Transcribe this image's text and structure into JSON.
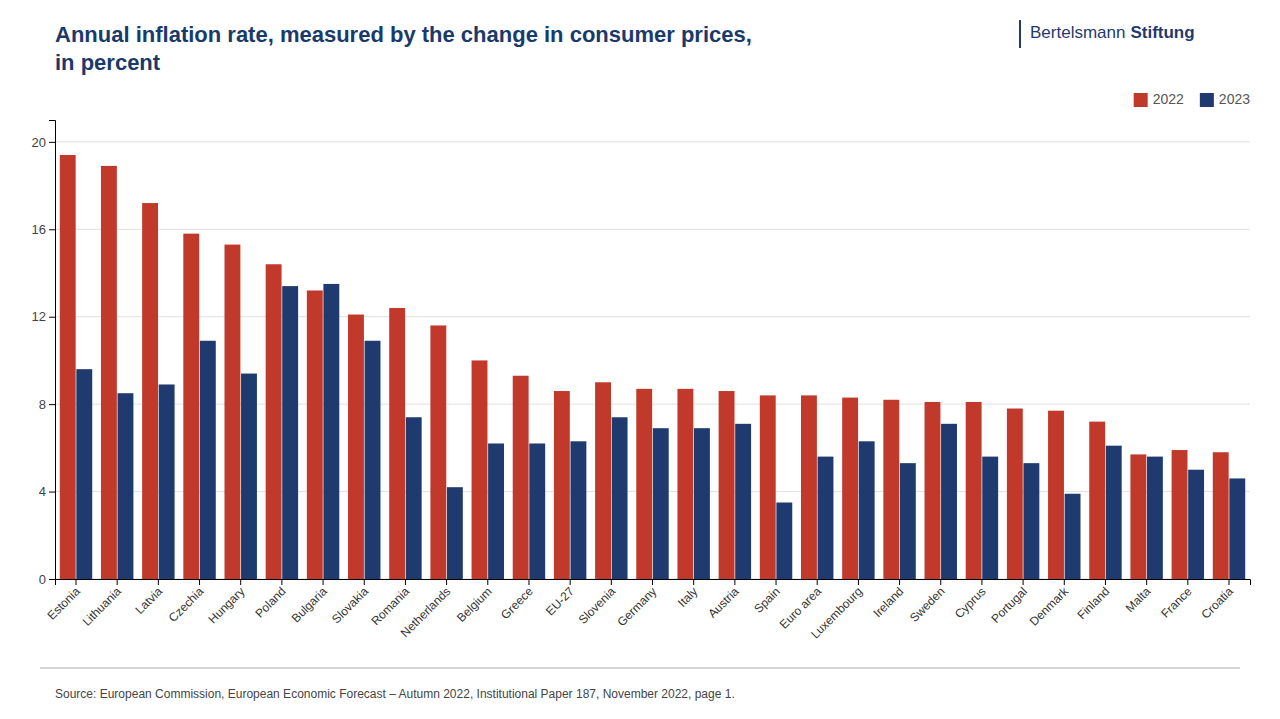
{
  "chart_data": {
    "type": "bar",
    "title": "Annual inflation rate, measured by the change in consumer prices,\nin percent",
    "categories": [
      "Estonia",
      "Lithuania",
      "Latvia",
      "Czechia",
      "Hungary",
      "Poland",
      "Bulgaria",
      "Slovakia",
      "Romania",
      "Netherlands",
      "Belgium",
      "Greece",
      "EU-27",
      "Slovenia",
      "Germany",
      "Italy",
      "Austria",
      "Spain",
      "Euro area",
      "Luxembourg",
      "Ireland",
      "Sweden",
      "Cyprus",
      "Portugal",
      "Denmark",
      "Finland",
      "Malta",
      "France",
      "Croatia"
    ],
    "series": [
      {
        "name": "2022",
        "color": "#c0392b",
        "values": [
          19.4,
          18.9,
          17.2,
          15.8,
          15.3,
          14.4,
          13.2,
          12.1,
          12.4,
          11.6,
          10.0,
          9.3,
          8.6,
          9.0,
          8.7,
          8.7,
          8.6,
          8.4,
          8.4,
          8.3,
          8.2,
          8.1,
          8.1,
          7.8,
          7.7,
          7.2,
          5.7,
          5.9,
          5.8
        ]
      },
      {
        "name": "2023",
        "color": "#1f3a6e",
        "values": [
          9.6,
          8.5,
          8.9,
          10.9,
          9.4,
          13.4,
          13.5,
          10.9,
          7.4,
          4.2,
          6.2,
          6.2,
          6.3,
          7.4,
          6.9,
          6.9,
          7.1,
          3.5,
          5.6,
          6.3,
          5.3,
          7.1,
          5.6,
          5.3,
          3.9,
          6.1,
          5.6,
          5.0,
          4.6
        ]
      }
    ],
    "ylim": [
      0,
      21
    ],
    "yticks": [
      0,
      4,
      8,
      12,
      16,
      20
    ],
    "grid": true,
    "legend": "upper right",
    "source": "Source: European Commission, European Economic Forecast – Autumn 2022, Institutional Paper 187, November 2022, page 1.",
    "annotations": [
      "Bertelsmann",
      "Stiftung"
    ]
  }
}
